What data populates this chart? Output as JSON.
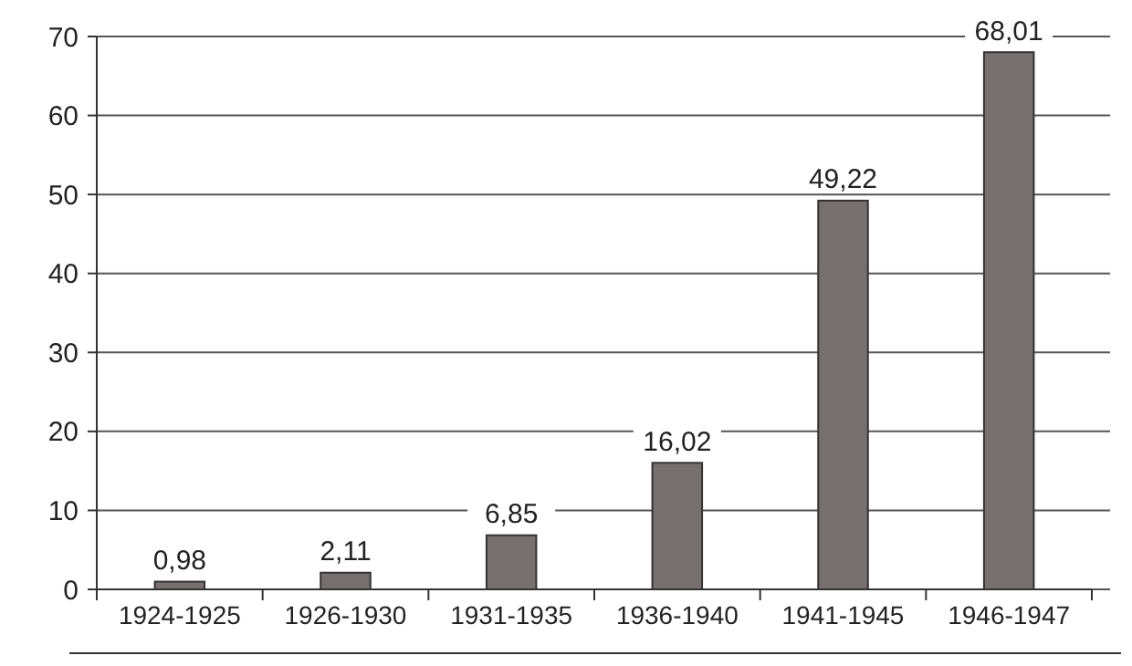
{
  "chart_data": {
    "type": "bar",
    "categories": [
      "1924-1925",
      "1926-1930",
      "1931-1935",
      "1936-1940",
      "1941-1945",
      "1946-1947"
    ],
    "values": [
      0.98,
      2.11,
      6.85,
      16.02,
      49.22,
      68.01
    ],
    "value_labels": [
      "0,98",
      "2,11",
      "6,85",
      "16,02",
      "49,22",
      "68,01"
    ],
    "color": "#777070",
    "ylim": [
      0,
      70
    ],
    "yticks": [
      0,
      10,
      20,
      30,
      40,
      50,
      60,
      70
    ],
    "grid": "y"
  }
}
